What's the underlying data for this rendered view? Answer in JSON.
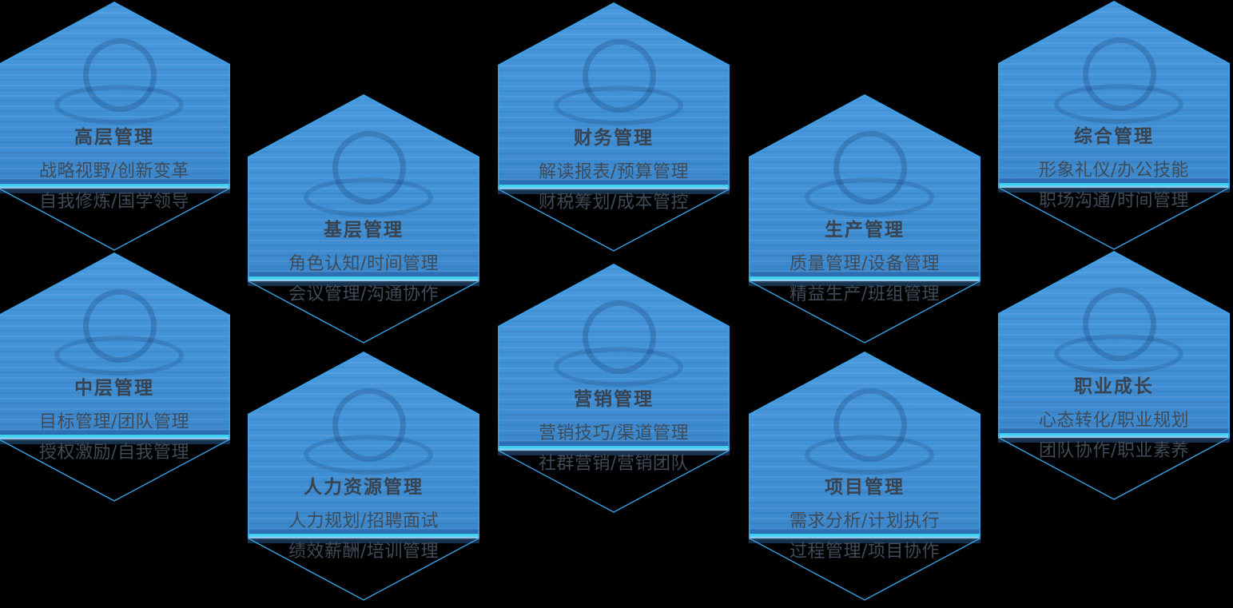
{
  "background_color": "#000000",
  "palette": {
    "hex_fill_top": "#4a99de",
    "hex_fill_base": "#4191d7",
    "fill_edge_dark_stripe": "#2c6fb4",
    "fill_edge_cyan_stripe": "#3fd4f4",
    "fill_edge_light_stripe": "#8cc9ee",
    "fill_edge_navy_stripe": "#16314d",
    "hex_outline": "#38a2e6",
    "title_text": "#39434f",
    "subtitle_text": "#3f4b59"
  },
  "hexagons": [
    {
      "id": "senior-management",
      "title": "高层管理",
      "line1": "战略视野/创新变革",
      "line2": "自我修炼/国学领导",
      "icon": "senior-management-watermark-icon"
    },
    {
      "id": "frontline-management",
      "title": "基层管理",
      "line1": "角色认知/时间管理",
      "line2": "会议管理/沟通协作",
      "icon": "frontline-management-watermark-icon"
    },
    {
      "id": "finance-management",
      "title": "财务管理",
      "line1": "解读报表/预算管理",
      "line2": "财税筹划/成本管控",
      "icon": "finance-management-watermark-icon"
    },
    {
      "id": "production-management",
      "title": "生产管理",
      "line1": "质量管理/设备管理",
      "line2": "精益生产/班组管理",
      "icon": "production-management-watermark-icon"
    },
    {
      "id": "general-management",
      "title": "综合管理",
      "line1": "形象礼仪/办公技能",
      "line2": "职场沟通/时间管理",
      "icon": "general-management-watermark-icon"
    },
    {
      "id": "middle-management",
      "title": "中层管理",
      "line1": "目标管理/团队管理",
      "line2": "授权激励/自我管理",
      "icon": "middle-management-watermark-icon"
    },
    {
      "id": "hr-management",
      "title": "人力资源管理",
      "line1": "人力规划/招聘面试",
      "line2": "绩效薪酬/培训管理",
      "icon": "hr-management-watermark-icon"
    },
    {
      "id": "marketing-management",
      "title": "营销管理",
      "line1": "营销技巧/渠道管理",
      "line2": "社群营销/营销团队",
      "icon": "marketing-management-watermark-icon"
    },
    {
      "id": "project-management",
      "title": "项目管理",
      "line1": "需求分析/计划执行",
      "line2": "过程管理/项目协作",
      "icon": "project-management-watermark-icon"
    },
    {
      "id": "career-growth",
      "title": "职业成长",
      "line1": "心态转化/职业规划",
      "line2": "团队协作/职业素养",
      "icon": "career-growth-watermark-icon"
    }
  ]
}
